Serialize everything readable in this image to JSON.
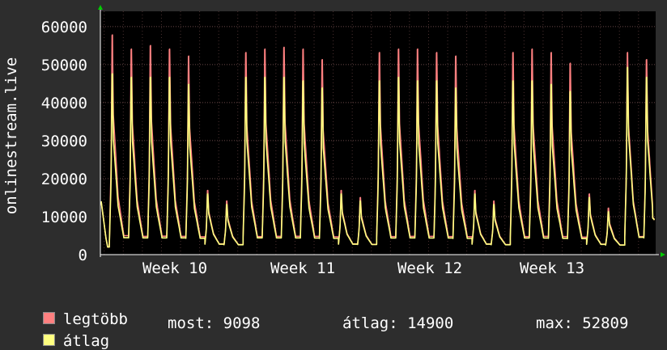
{
  "chart_data": {
    "type": "area",
    "ylabel": "onlinestream.live",
    "yticks": [
      0,
      10000,
      20000,
      30000,
      40000,
      50000,
      60000
    ],
    "ylim": [
      0,
      64000
    ],
    "xticks": [
      "Week 10",
      "Week 11",
      "Week 12",
      "Week 13"
    ],
    "grid": true,
    "background": "#000000",
    "series": [
      {
        "name": "legtöbb",
        "color": "#ff8080",
        "daily_peaks": [
          62000,
          58000,
          59000,
          58000,
          56000,
          18000,
          15000,
          57000,
          58000,
          58500,
          58000,
          55000,
          18000,
          16000,
          57000,
          58000,
          58000,
          57000,
          56000,
          18000,
          15000,
          57000,
          58000,
          57000,
          54000,
          17000,
          13000,
          57000,
          55000
        ],
        "last": 9100
      },
      {
        "name": "átlag",
        "color": "#ffff80",
        "daily_peaks": [
          51000,
          50000,
          50000,
          50000,
          48000,
          17000,
          14000,
          50000,
          50000,
          50000,
          49000,
          47000,
          17000,
          15000,
          49000,
          50000,
          49000,
          49000,
          47000,
          17000,
          14000,
          49000,
          49000,
          48000,
          46000,
          16000,
          12000,
          52809,
          50000
        ],
        "last": 9098
      }
    ]
  },
  "legend": {
    "max_label": "legtöbb",
    "avg_label": "átlag",
    "now_text": "most: 9098",
    "avg_text": "átlag: 14900",
    "max_text": "max: 52809"
  },
  "colors": {
    "page": "#2d2d2d",
    "plot": "#000000",
    "grid": "#5a5a5a",
    "axis_arrow": "#00cc00"
  }
}
